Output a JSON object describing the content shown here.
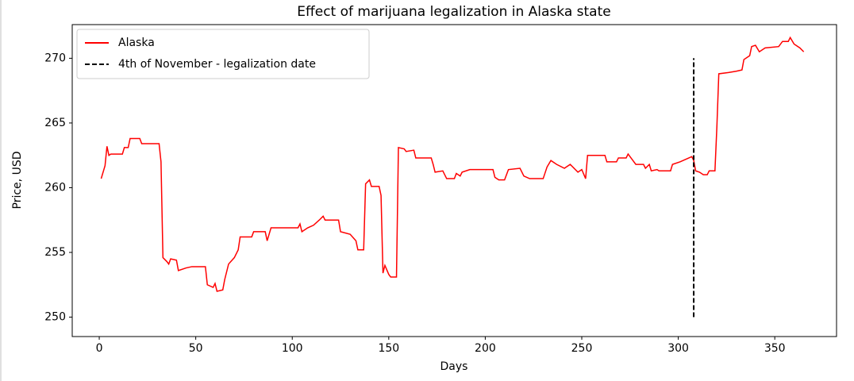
{
  "chart_data": {
    "type": "line",
    "title": "Effect of marijuana legalization in Alaska state",
    "x_label": "Days",
    "y_label": "Price, USD",
    "x": [
      1,
      3,
      4,
      5,
      6,
      12,
      13,
      15,
      16,
      21,
      22,
      26,
      31,
      32,
      33,
      35,
      36,
      37,
      40,
      41,
      45,
      48,
      55,
      56,
      59,
      60,
      61,
      64,
      65,
      67,
      70,
      72,
      73,
      79,
      80,
      86,
      87,
      89,
      103,
      104,
      105,
      108,
      111,
      114,
      116,
      117,
      124,
      125,
      130,
      133,
      134,
      137,
      138,
      140,
      141,
      145,
      146,
      147,
      148,
      150,
      151,
      154,
      155,
      158,
      159,
      163,
      164,
      172,
      173,
      174,
      178,
      180,
      184,
      185,
      187,
      188,
      192,
      204,
      205,
      207,
      210,
      212,
      218,
      220,
      223,
      230,
      232,
      234,
      237,
      241,
      244,
      248,
      250,
      252,
      253,
      262,
      263,
      268,
      269,
      273,
      274,
      276,
      278,
      282,
      283,
      285,
      286,
      289,
      290,
      296,
      297,
      301,
      304,
      307,
      308,
      309,
      311,
      313,
      315,
      316,
      319,
      320,
      321,
      326,
      330,
      333,
      334,
      337,
      338,
      340,
      342,
      345,
      352,
      354,
      357,
      358,
      360,
      363,
      365
    ],
    "series": [
      {
        "name": "Alaska",
        "color": "#ff0000",
        "values": [
          260.7,
          261.7,
          263.2,
          262.5,
          262.6,
          262.6,
          263.1,
          263.1,
          263.8,
          263.8,
          263.4,
          263.4,
          263.4,
          262,
          254.6,
          254.3,
          254.1,
          254.5,
          254.4,
          253.6,
          253.8,
          253.9,
          253.9,
          252.5,
          252.3,
          252.6,
          252,
          252.1,
          252.9,
          254.1,
          254.6,
          255.2,
          256.2,
          256.2,
          256.6,
          256.6,
          255.9,
          256.9,
          256.9,
          257.2,
          256.6,
          256.9,
          257.1,
          257.5,
          257.8,
          257.5,
          257.5,
          256.6,
          256.4,
          255.9,
          255.2,
          255.2,
          260.3,
          260.6,
          260.1,
          260.1,
          259.4,
          253.4,
          254,
          253.3,
          253.1,
          253.1,
          263.1,
          263,
          262.8,
          262.9,
          262.3,
          262.3,
          261.8,
          261.2,
          261.3,
          260.7,
          260.7,
          261.1,
          260.9,
          261.2,
          261.4,
          261.4,
          260.8,
          260.6,
          260.6,
          261.4,
          261.5,
          260.9,
          260.7,
          260.7,
          261.6,
          262.1,
          261.8,
          261.5,
          261.8,
          261.2,
          261.4,
          260.7,
          262.5,
          262.5,
          262,
          262,
          262.3,
          262.3,
          262.6,
          262.2,
          261.8,
          261.8,
          261.5,
          261.8,
          261.3,
          261.4,
          261.3,
          261.3,
          261.8,
          262,
          262.2,
          262.4,
          262.1,
          261.3,
          261.2,
          261,
          261,
          261.3,
          261.3,
          264.7,
          268.8,
          268.9,
          269,
          269.1,
          269.9,
          270.2,
          270.9,
          271,
          270.5,
          270.8,
          270.9,
          271.3,
          271.3,
          271.6,
          271.1,
          270.8,
          270.5
        ]
      }
    ],
    "vline": {
      "name": "4th of November - legalization date",
      "x": 308,
      "ymin": 250,
      "ymax": 270,
      "color": "#000000"
    },
    "xlim": [
      -14,
      382
    ],
    "ylim": [
      248.5,
      272.6
    ],
    "xticks": [
      0,
      50,
      100,
      150,
      200,
      250,
      300,
      350
    ],
    "yticks": [
      250,
      255,
      260,
      265,
      270
    ],
    "legend": "upper left",
    "grid": false
  }
}
